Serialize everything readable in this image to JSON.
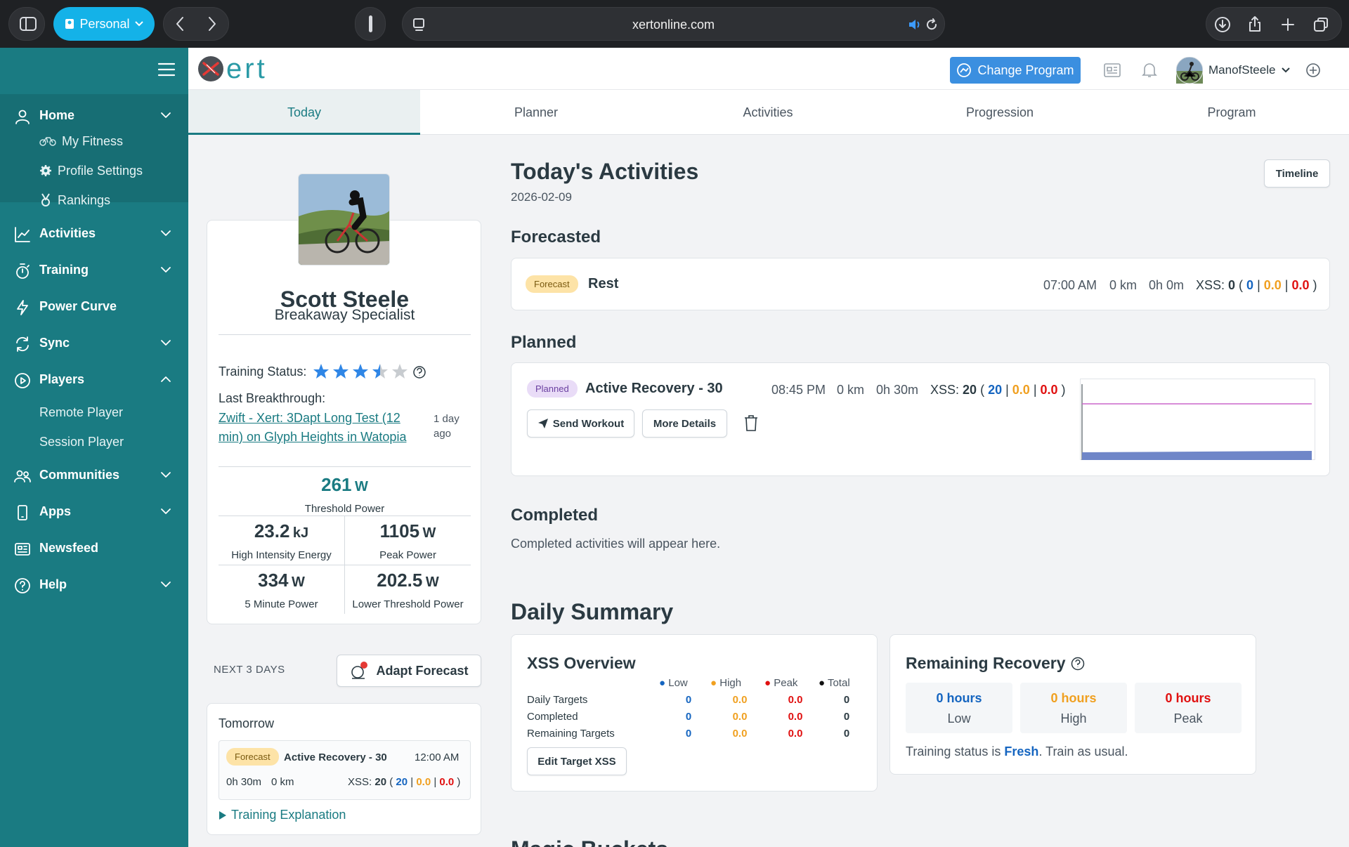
{
  "browser": {
    "profile": "Personal",
    "url": "xertonline.com"
  },
  "sidebar": {
    "home": "Home",
    "my_fitness": "My Fitness",
    "profile_settings": "Profile Settings",
    "rankings": "Rankings",
    "activities": "Activities",
    "training": "Training",
    "power_curve": "Power Curve",
    "sync": "Sync",
    "players": "Players",
    "remote_player": "Remote Player",
    "session_player": "Session Player",
    "communities": "Communities",
    "apps": "Apps",
    "newsfeed": "Newsfeed",
    "help": "Help"
  },
  "header": {
    "logo": "ert",
    "change_program": "Change Program",
    "username": "ManofSteele"
  },
  "tabs": [
    "Today",
    "Planner",
    "Activities",
    "Progression",
    "Program"
  ],
  "profile": {
    "name": "Scott Steele",
    "title": "Breakaway Specialist",
    "training_status_label": "Training Status:",
    "stars": 3.5,
    "last_breakthrough_label": "Last Breakthrough:",
    "breakthrough_link": "Zwift - Xert: 3Dapt Long Test (12 min) on Glyph Heights in Watopia",
    "breakthrough_ago": "1 day ago"
  },
  "stats": {
    "threshold": {
      "value": "261",
      "unit": "W",
      "label": "Threshold Power"
    },
    "hie": {
      "value": "23.2",
      "unit": "kJ",
      "label": "High Intensity Energy"
    },
    "peak": {
      "value": "1105",
      "unit": "W",
      "label": "Peak Power"
    },
    "five": {
      "value": "334",
      "unit": "W",
      "label": "5 Minute Power"
    },
    "ltp": {
      "value": "202.5",
      "unit": "W",
      "label": "Lower Threshold Power"
    }
  },
  "next": {
    "label": "NEXT 3 DAYS",
    "adapt": "Adapt Forecast",
    "tomorrow": "Tomorrow",
    "pill": "Forecast",
    "workout": "Active Recovery - 30",
    "time": "12:00 AM",
    "duration": "0h 30m",
    "dist": "0 km",
    "xss_label": "XSS:",
    "xss_total": "20",
    "xss_low": "20",
    "xss_high": "0.0",
    "xss_peak": "0.0",
    "explanation": "Training Explanation"
  },
  "today": {
    "title": "Today's Activities",
    "date": "2026-02-09",
    "timeline": "Timeline",
    "forecasted": "Forecasted",
    "f_pill": "Forecast",
    "f_name": "Rest",
    "f_time": "07:00 AM",
    "f_dist": "0 km",
    "f_dur": "0h 0m",
    "f_xss": "0",
    "f_low": "0",
    "f_high": "0.0",
    "f_peak": "0.0",
    "planned": "Planned",
    "p_pill": "Planned",
    "p_name": "Active Recovery - 30",
    "p_time": "08:45 PM",
    "p_dist": "0 km",
    "p_dur": "0h 30m",
    "p_xss": "20",
    "p_low": "20",
    "p_high": "0.0",
    "p_peak": "0.0",
    "send": "Send Workout",
    "more": "More Details",
    "completed": "Completed",
    "completed_text": "Completed activities will appear here."
  },
  "summary": {
    "title": "Daily Summary",
    "xss": {
      "title": "XSS Overview",
      "cols": [
        "Low",
        "High",
        "Peak",
        "Total"
      ],
      "rows": [
        {
          "label": "Daily Targets",
          "low": "0",
          "high": "0.0",
          "peak": "0.0",
          "total": "0"
        },
        {
          "label": "Completed",
          "low": "0",
          "high": "0.0",
          "peak": "0.0",
          "total": "0"
        },
        {
          "label": "Remaining Targets",
          "low": "0",
          "high": "0.0",
          "peak": "0.0",
          "total": "0"
        }
      ],
      "edit": "Edit Target XSS"
    },
    "recovery": {
      "title": "Remaining Recovery",
      "low_v": "0 hours",
      "low_l": "Low",
      "high_v": "0 hours",
      "high_l": "High",
      "peak_v": "0 hours",
      "peak_l": "Peak",
      "status_pre": "Training status is",
      "status": "Fresh",
      "status_post": ". Train as usual."
    },
    "next_section": "Magic Buckets"
  },
  "colors": {
    "teal": "#1a7b82",
    "low": "#1565c0",
    "high": "#f0a020",
    "peak": "#e01010",
    "fresh": "#1565c0"
  }
}
